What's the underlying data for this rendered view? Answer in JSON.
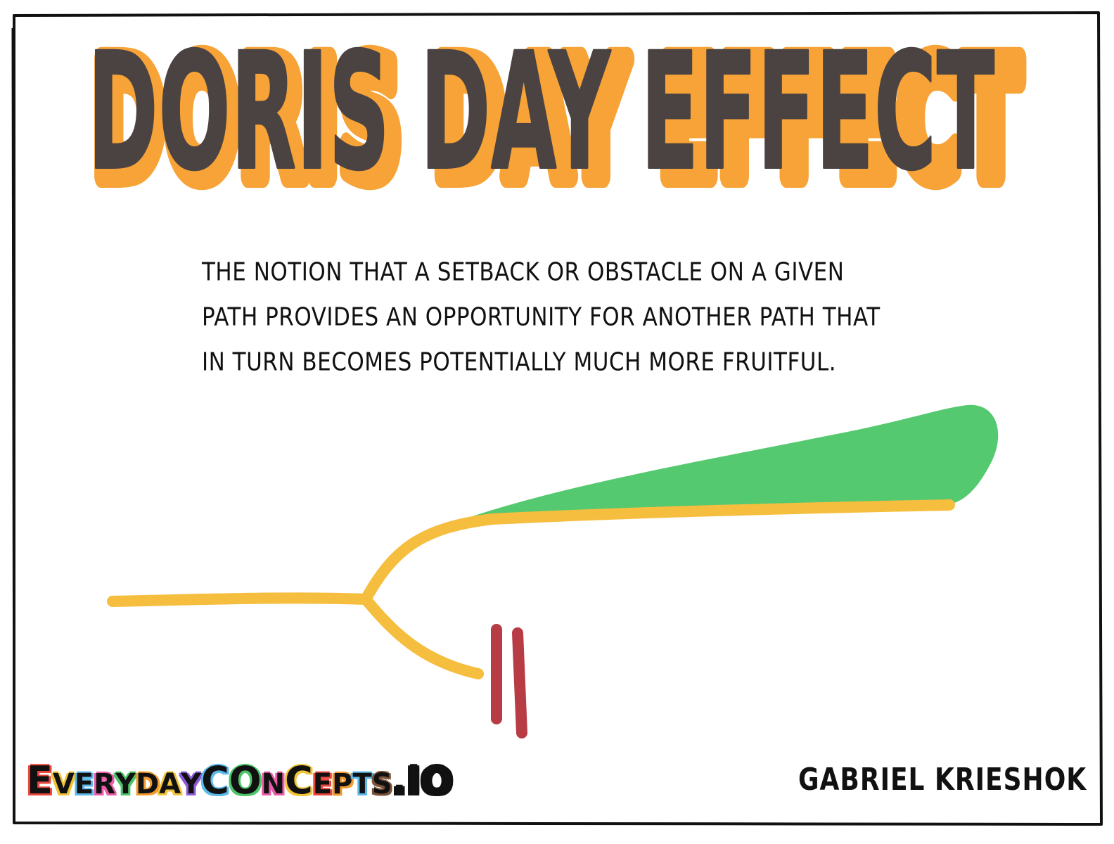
{
  "title": "DORIS DAY EFFECT",
  "definition_lines": [
    "THE NOTION THAT A SETBACK OR OBSTACLE ON A GIVEN",
    "PATH PROVIDES AN OPPORTUNITY FOR ANOTHER PATH THAT",
    "IN TURN BECOMES POTENTIALLY MUCH MORE FRUITFUL."
  ],
  "footer": {
    "brand": "EVERYDAYCONCEPTS.IO",
    "brand_display": [
      {
        "ch": "E",
        "color": "#e8453c"
      },
      {
        "ch": "V",
        "color": "#f2c438"
      },
      {
        "ch": "E",
        "color": "#5bb8e8"
      },
      {
        "ch": "R",
        "color": "#e85ca8"
      },
      {
        "ch": "Y",
        "color": "#4ec46a"
      },
      {
        "ch": "D",
        "color": "#f29a2e"
      },
      {
        "ch": "A",
        "color": "#f2c438"
      },
      {
        "ch": "Y",
        "color": "#8a5ad8"
      },
      {
        "ch": "C",
        "color": "#5bb8e8"
      },
      {
        "ch": "O",
        "color": "#4ec46a"
      },
      {
        "ch": "N",
        "color": "#e85ca8"
      },
      {
        "ch": "C",
        "color": "#f2c438"
      },
      {
        "ch": "E",
        "color": "#e8453c"
      },
      {
        "ch": "P",
        "color": "#f29a2e"
      },
      {
        "ch": "T",
        "color": "#5bb8e8"
      },
      {
        "ch": "S",
        "color": "#7a5238"
      },
      {
        "ch": ".",
        "color": "#111111"
      },
      {
        "ch": "I",
        "color": "#111111"
      },
      {
        "ch": "O",
        "color": "#111111"
      }
    ],
    "author": "GABRIEL KRIESHOK"
  },
  "colors": {
    "title_fill": "#4a4342",
    "title_outline": "#f7a337",
    "path": "#f6be3e",
    "fruitful_area": "#55c96f",
    "obstacle": "#b73c44",
    "frame": "#111111"
  }
}
